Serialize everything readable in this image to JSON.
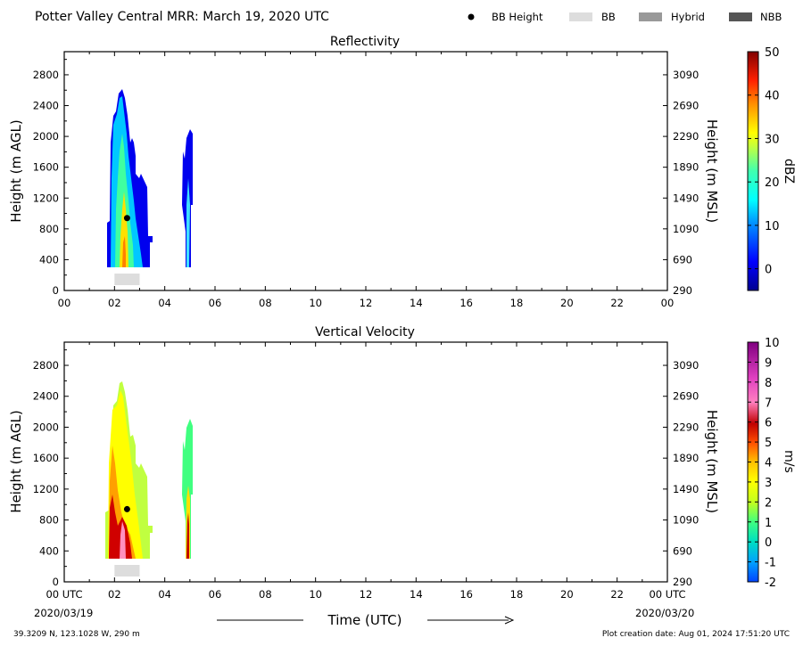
{
  "header": {
    "title": "Potter Valley Central MRR:  March 19, 2020 UTC",
    "legend": [
      {
        "label": "BB Height",
        "marker": "dot",
        "color": "#000000"
      },
      {
        "label": "BB",
        "marker": "box",
        "color": "#dddddd"
      },
      {
        "label": "Hybrid",
        "marker": "box",
        "color": "#999999"
      },
      {
        "label": "NBB",
        "marker": "box",
        "color": "#555555"
      }
    ]
  },
  "footer": {
    "location": "39.3209 N, 123.1028 W, 290 m",
    "creation": "Plot creation date: Aug 01, 2024 17:51:20 UTC"
  },
  "chart_data": [
    {
      "type": "heatmap",
      "title": "Reflectivity",
      "ylabel": "Height (m AGL)",
      "ylabel_right": "Height (m MSL)",
      "xlim": [
        0,
        24
      ],
      "ylim": [
        0,
        3100
      ],
      "x_ticks": [
        "00",
        "02",
        "04",
        "06",
        "08",
        "10",
        "12",
        "14",
        "16",
        "18",
        "20",
        "22",
        "00"
      ],
      "y_ticks": [
        0,
        400,
        800,
        1200,
        1600,
        2000,
        2400,
        2800
      ],
      "y_ticks_right": [
        "290",
        "690",
        "1090",
        "1490",
        "1890",
        "2290",
        "2690",
        "3090"
      ],
      "colorbar": {
        "label": "dBZ",
        "min": -5,
        "max": 50,
        "ticks": [
          0,
          10,
          20,
          30,
          40,
          50
        ]
      },
      "bb_height": [
        {
          "time": 2.5,
          "height": 940
        }
      ],
      "bb_flags": [
        {
          "start": 2.0,
          "end": 3.0,
          "type": "BB"
        }
      ]
    },
    {
      "type": "heatmap",
      "title": "Vertical Velocity",
      "ylabel": "Height (m AGL)",
      "ylabel_right": "Height (m MSL)",
      "xlabel": "Time (UTC)",
      "xlim": [
        0,
        24
      ],
      "ylim": [
        0,
        3100
      ],
      "x_ticks": [
        "00 UTC",
        "02",
        "04",
        "06",
        "08",
        "10",
        "12",
        "14",
        "16",
        "18",
        "20",
        "22",
        "00 UTC"
      ],
      "x_dates": [
        "2020/03/19",
        "2020/03/20"
      ],
      "y_ticks": [
        0,
        400,
        800,
        1200,
        1600,
        2000,
        2400,
        2800
      ],
      "y_ticks_right": [
        "290",
        "690",
        "1090",
        "1490",
        "1890",
        "2290",
        "2690",
        "3090"
      ],
      "colorbar": {
        "label": "m/s",
        "min": -2,
        "max": 10,
        "ticks": [
          -2,
          -1,
          0,
          1,
          2,
          3,
          4,
          5,
          6,
          7,
          8,
          9,
          10
        ]
      },
      "bb_height": [
        {
          "time": 2.5,
          "height": 940
        }
      ],
      "bb_flags": [
        {
          "start": 2.0,
          "end": 3.0,
          "type": "BB"
        }
      ]
    }
  ]
}
